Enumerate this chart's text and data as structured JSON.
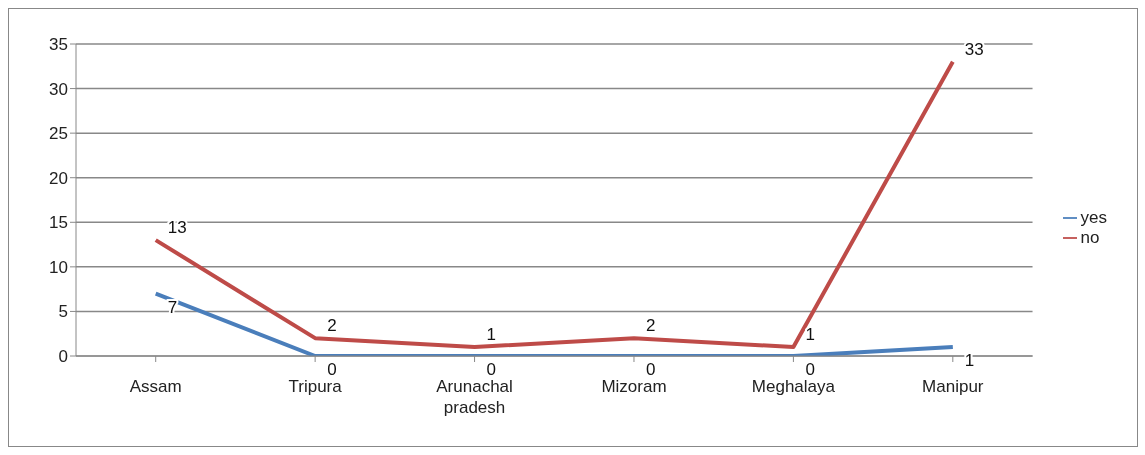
{
  "chart_data": {
    "type": "line",
    "categories": [
      "Assam",
      "Tripura",
      "Arunachal pradesh",
      "Mizoram",
      "Meghalaya",
      "Manipur"
    ],
    "series": [
      {
        "name": "yes",
        "color": "#4a7ebb",
        "values": [
          7,
          0,
          0,
          0,
          0,
          1
        ]
      },
      {
        "name": "no",
        "color": "#be4b48",
        "values": [
          13,
          2,
          1,
          2,
          1,
          33
        ]
      }
    ],
    "ylim": [
      0,
      35
    ],
    "yticks": [
      0,
      5,
      10,
      15,
      20,
      25,
      30,
      35
    ],
    "grid": "y",
    "legend": "right",
    "data_labels": true,
    "marker": "none",
    "line_style": "solid"
  }
}
